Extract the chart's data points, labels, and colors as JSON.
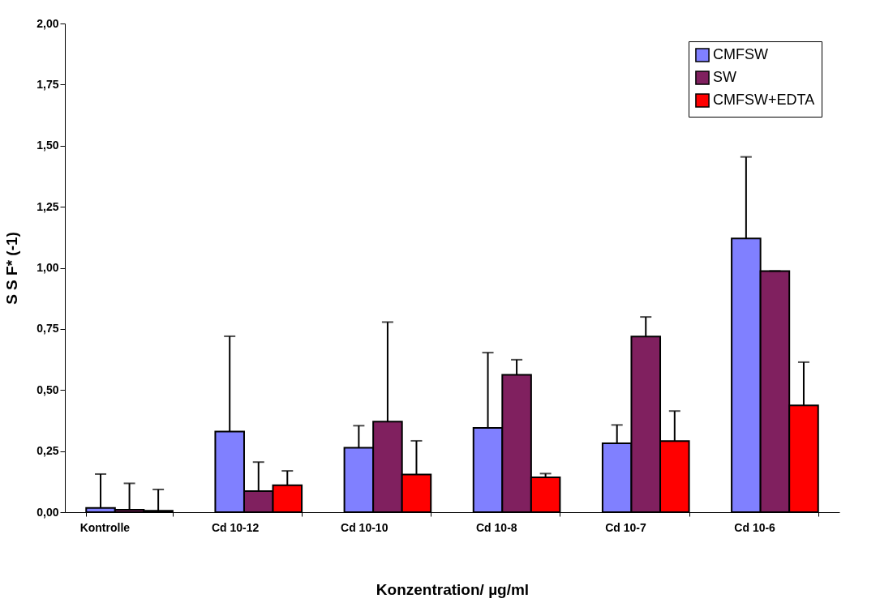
{
  "chart_data": {
    "type": "bar",
    "xlabel": "Konzentration/ µg/ml",
    "ylabel": "S S F* (-1)",
    "categories": [
      "Kontrolle",
      "Cd  10-12",
      "Cd 10-10",
      "Cd 10-8",
      "Cd 10-7",
      "Cd 10-6"
    ],
    "series": [
      {
        "name": "CMFSW",
        "color": "#8080ff",
        "values": [
          0.017,
          0.33,
          0.264,
          0.345,
          0.282,
          1.12
        ],
        "errors": [
          [
            0.017,
            0.156
          ],
          [
            0.33,
            0.72
          ],
          [
            0.264,
            0.354
          ],
          [
            0.345,
            0.653
          ],
          [
            0.282,
            0.357
          ],
          [
            1.12,
            1.454
          ]
        ]
      },
      {
        "name": "SW",
        "color": "#80205f",
        "values": [
          0.01,
          0.086,
          0.371,
          0.562,
          0.719,
          0.987
        ],
        "errors": [
          [
            0.01,
            0.118
          ],
          [
            0.086,
            0.205
          ],
          [
            0.371,
            0.778
          ],
          [
            0.562,
            0.624
          ],
          [
            0.719,
            0.799
          ],
          [
            0.987,
            0.987
          ]
        ]
      },
      {
        "name": "CMFSW+EDTA",
        "color": "#ff0000",
        "values": [
          0.006,
          0.11,
          0.154,
          0.143,
          0.291,
          0.437
        ],
        "errors": [
          [
            0.006,
            0.093
          ],
          [
            0.11,
            0.169
          ],
          [
            0.154,
            0.292
          ],
          [
            0.143,
            0.158
          ],
          [
            0.291,
            0.414
          ],
          [
            0.437,
            0.614
          ]
        ]
      }
    ],
    "ylim": [
      0,
      2
    ],
    "yticks": [
      {
        "value": 0,
        "label": "0,00"
      },
      {
        "value": 0.25,
        "label": "0,25"
      },
      {
        "value": 0.5,
        "label": "0,50"
      },
      {
        "value": 0.75,
        "label": "0,75"
      },
      {
        "value": 1,
        "label": "1,00"
      },
      {
        "value": 1.25,
        "label": "1,25"
      },
      {
        "value": 1.5,
        "label": "1,50"
      },
      {
        "value": 1.75,
        "label": "1,75"
      },
      {
        "value": 2,
        "label": "2,00"
      }
    ],
    "legend": "top right"
  }
}
